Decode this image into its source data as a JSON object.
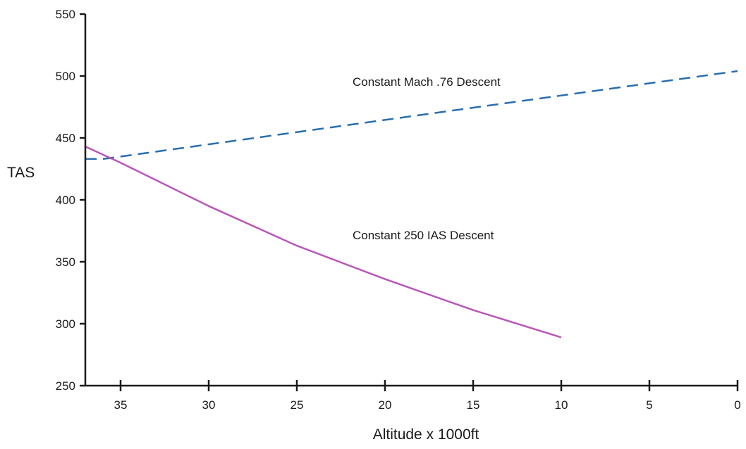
{
  "chart_data": {
    "type": "line",
    "title": "",
    "xlabel": "Altitude x 1000ft",
    "ylabel": "TAS",
    "xlim": [
      37,
      0
    ],
    "ylim": [
      250,
      550
    ],
    "x_ticks": [
      35,
      30,
      25,
      20,
      15,
      10,
      5,
      0
    ],
    "y_ticks": [
      250,
      300,
      350,
      400,
      450,
      500,
      550
    ],
    "grid": false,
    "legend": "none",
    "series": [
      {
        "name": "Constant Mach .76 Descent",
        "color": "#2a6ead",
        "style": "dashed",
        "x": [
          37,
          36,
          0
        ],
        "y": [
          433,
          433,
          504
        ]
      },
      {
        "name": "Constant 250 IAS Descent",
        "color": "#b857b8",
        "style": "solid",
        "x": [
          37,
          35,
          30,
          25,
          20,
          15,
          10
        ],
        "y": [
          443,
          430,
          395,
          363,
          336,
          311,
          289
        ]
      }
    ]
  }
}
